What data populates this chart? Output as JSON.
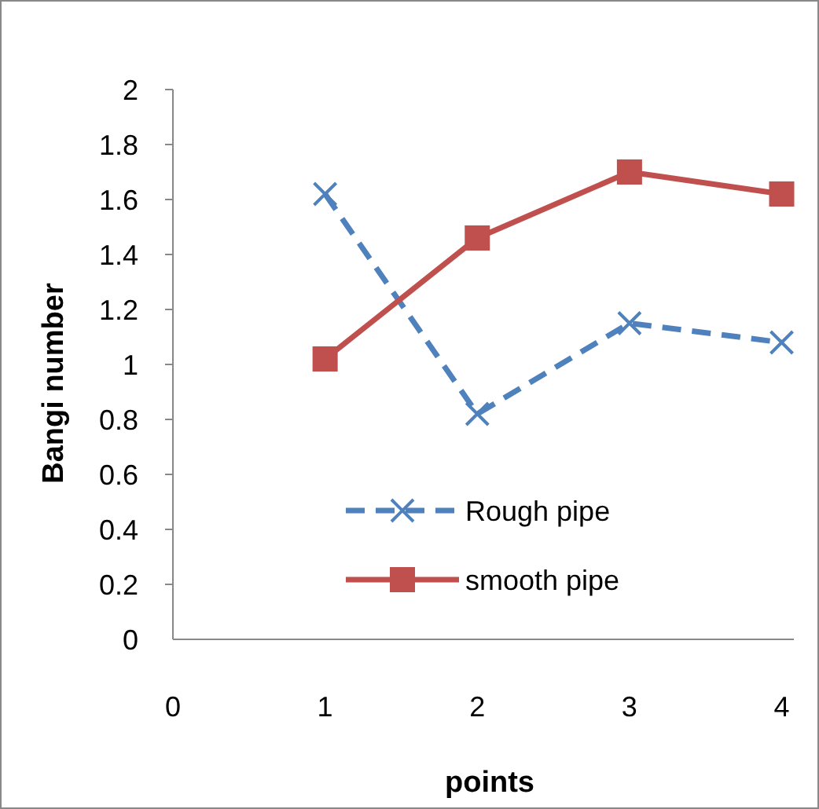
{
  "chart_data": {
    "type": "line",
    "xlabel": "points",
    "ylabel": "Bangi number",
    "x": [
      1,
      2,
      3,
      4
    ],
    "series": [
      {
        "name": "Rough pipe",
        "color": "#4f81bd",
        "values": [
          1.62,
          0.82,
          1.15,
          1.08
        ],
        "marker": "cross",
        "line_style": "dashed"
      },
      {
        "name": "smooth pipe",
        "color": "#c0504d",
        "values": [
          1.02,
          1.46,
          1.7,
          1.62
        ],
        "marker": "square",
        "line_style": "solid"
      }
    ],
    "xlim": [
      0,
      4.08
    ],
    "xticks": [
      0,
      1,
      2,
      3,
      4
    ],
    "ylim": [
      0,
      2
    ],
    "yticks": [
      0,
      0.2,
      0.4,
      0.6,
      0.8,
      1,
      1.2,
      1.4,
      1.6,
      1.8,
      2
    ],
    "grid": false,
    "legend": "bottom"
  }
}
